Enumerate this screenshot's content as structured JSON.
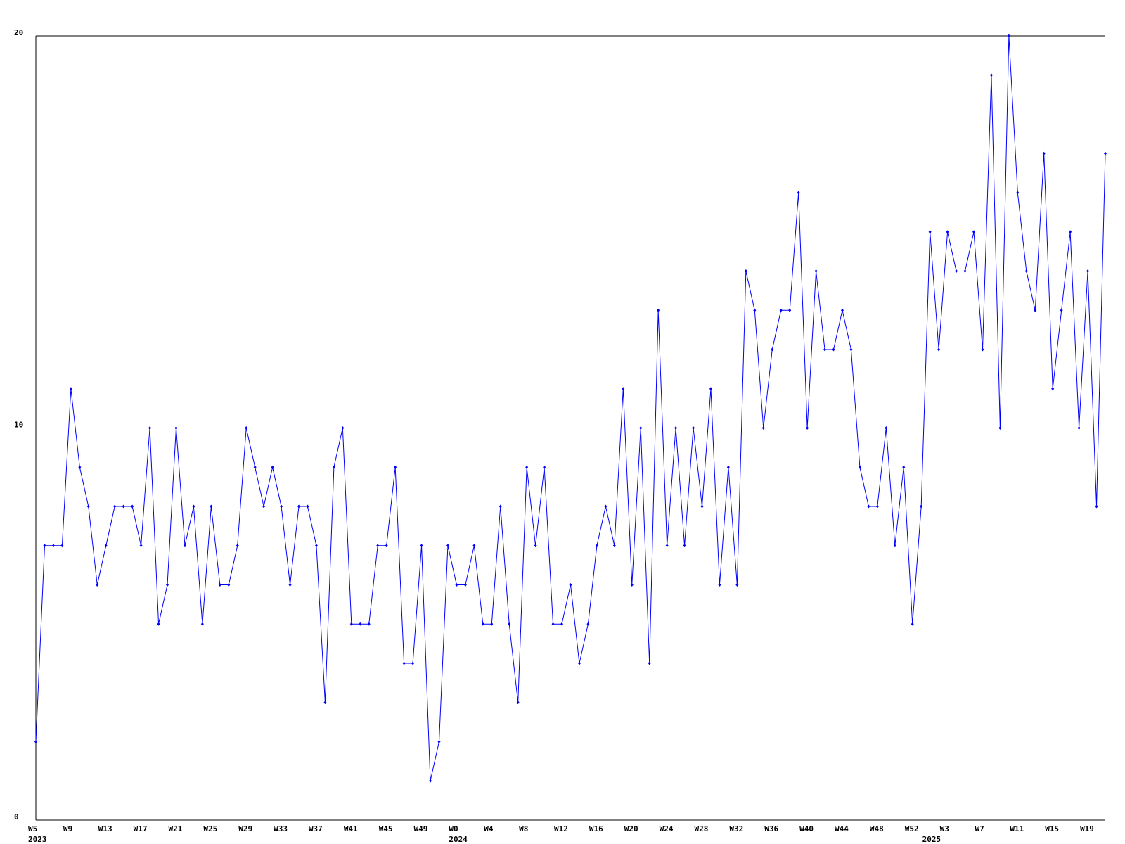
{
  "chart_data": {
    "type": "line",
    "categories": [
      "W5",
      null,
      null,
      null,
      "W9",
      null,
      null,
      null,
      "W13",
      null,
      null,
      null,
      "W17",
      null,
      null,
      null,
      "W21",
      null,
      null,
      null,
      "W25",
      null,
      null,
      null,
      "W29",
      null,
      null,
      null,
      "W33",
      null,
      null,
      null,
      "W37",
      null,
      null,
      null,
      "W41",
      null,
      null,
      null,
      "W45",
      null,
      null,
      null,
      "W49",
      null,
      null,
      null,
      "W0",
      null,
      null,
      null,
      "W4",
      null,
      null,
      null,
      "W8",
      null,
      null,
      null,
      "W12",
      null,
      null,
      null,
      "W16",
      null,
      null,
      null,
      "W20",
      null,
      null,
      null,
      "W24",
      null,
      null,
      null,
      "W28",
      null,
      null,
      null,
      "W32",
      null,
      null,
      null,
      "W36",
      null,
      null,
      null,
      "W40",
      null,
      null,
      null,
      "W44",
      null,
      null,
      null,
      "W48",
      null,
      null,
      null,
      "W52",
      null,
      null,
      null,
      "W3",
      null,
      null,
      null,
      "W7",
      null,
      null,
      null,
      "W11",
      null,
      null,
      null,
      "W15",
      null,
      null,
      null,
      "W19",
      null,
      null
    ],
    "years": [
      "2023",
      null,
      null,
      null,
      null,
      null,
      null,
      null,
      null,
      null,
      null,
      null,
      null,
      null,
      null,
      null,
      null,
      null,
      null,
      null,
      null,
      null,
      null,
      null,
      null,
      null,
      null,
      null,
      null,
      null,
      null,
      null,
      null,
      null,
      null,
      null,
      null,
      null,
      null,
      null,
      null,
      null,
      null,
      null,
      null,
      null,
      null,
      null,
      "2024",
      null,
      null,
      null,
      null,
      null,
      null,
      null,
      null,
      null,
      null,
      null,
      null,
      null,
      null,
      null,
      null,
      null,
      null,
      null,
      null,
      null,
      null,
      null,
      null,
      null,
      null,
      null,
      null,
      null,
      null,
      null,
      null,
      null,
      null,
      null,
      null,
      null,
      null,
      null,
      null,
      null,
      null,
      null,
      null,
      null,
      null,
      null,
      null,
      null,
      null,
      null,
      null,
      null,
      "2025",
      null,
      null,
      null,
      null,
      null,
      null,
      null,
      null,
      null,
      null,
      null,
      null,
      null,
      null,
      null,
      null,
      null,
      null,
      null,
      null
    ],
    "series": [
      {
        "color": "#0000ff",
        "values": [
          2,
          7,
          7,
          7,
          11,
          9,
          8,
          6,
          7,
          8,
          8,
          8,
          7,
          10,
          5,
          6,
          10,
          7,
          8,
          5,
          8,
          6,
          6,
          7,
          10,
          9,
          8,
          9,
          8,
          6,
          8,
          8,
          7,
          3,
          9,
          10,
          5,
          5,
          5,
          7,
          7,
          9,
          4,
          4,
          7,
          1,
          2,
          7,
          6,
          6,
          7,
          5,
          5,
          8,
          5,
          3,
          9,
          7,
          9,
          5,
          5,
          6,
          4,
          5,
          7,
          8,
          7,
          11,
          6,
          10,
          4,
          13,
          7,
          10,
          7,
          10,
          8,
          11,
          6,
          9,
          6,
          14,
          13,
          10,
          12,
          13,
          13,
          16,
          10,
          14,
          12,
          12,
          13,
          12,
          9,
          8,
          8,
          10,
          7,
          9,
          5,
          8,
          15,
          12,
          15,
          14,
          14,
          15,
          12,
          19,
          10,
          20,
          16,
          14,
          13,
          17,
          11,
          13,
          15,
          10,
          14,
          8,
          17
        ]
      }
    ],
    "ylim": [
      0,
      20
    ],
    "yticks": [
      0,
      10,
      20
    ],
    "grid": true
  }
}
